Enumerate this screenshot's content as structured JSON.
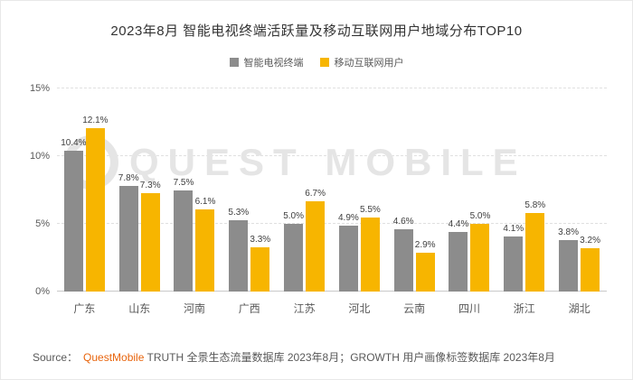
{
  "title": "2023年8月 智能电视终端活跃量及移动互联网用户地域分布TOP10",
  "watermark": {
    "text": "QUEST MOBILE"
  },
  "chart_data": {
    "type": "bar",
    "title": "2023年8月 智能电视终端活跃量及移动互联网用户地域分布TOP10",
    "categories": [
      "广东",
      "山东",
      "河南",
      "广西",
      "江苏",
      "河北",
      "云南",
      "四川",
      "浙江",
      "湖北"
    ],
    "series": [
      {
        "name": "智能电视终端",
        "color": "#8C8C8C",
        "values": [
          10.4,
          7.8,
          7.5,
          5.3,
          5.0,
          4.9,
          4.6,
          4.4,
          4.1,
          3.8
        ]
      },
      {
        "name": "移动互联网用户",
        "color": "#F7B500",
        "values": [
          12.1,
          7.3,
          6.1,
          3.3,
          6.7,
          5.5,
          2.9,
          5.0,
          5.8,
          3.2
        ]
      }
    ],
    "yticks": [
      "0%",
      "5%",
      "10%",
      "15%"
    ],
    "ylim": [
      0,
      15
    ],
    "grid": "horizontal-dashed",
    "legend_position": "top",
    "value_label_suffix": "%"
  },
  "source": {
    "prefix": "Source：",
    "brand": "QuestMobile",
    "rest": " TRUTH 全景生态流量数据库 2023年8月；GROWTH 用户画像标签数据库 2023年8月",
    "brand_color": "#E8640C"
  }
}
